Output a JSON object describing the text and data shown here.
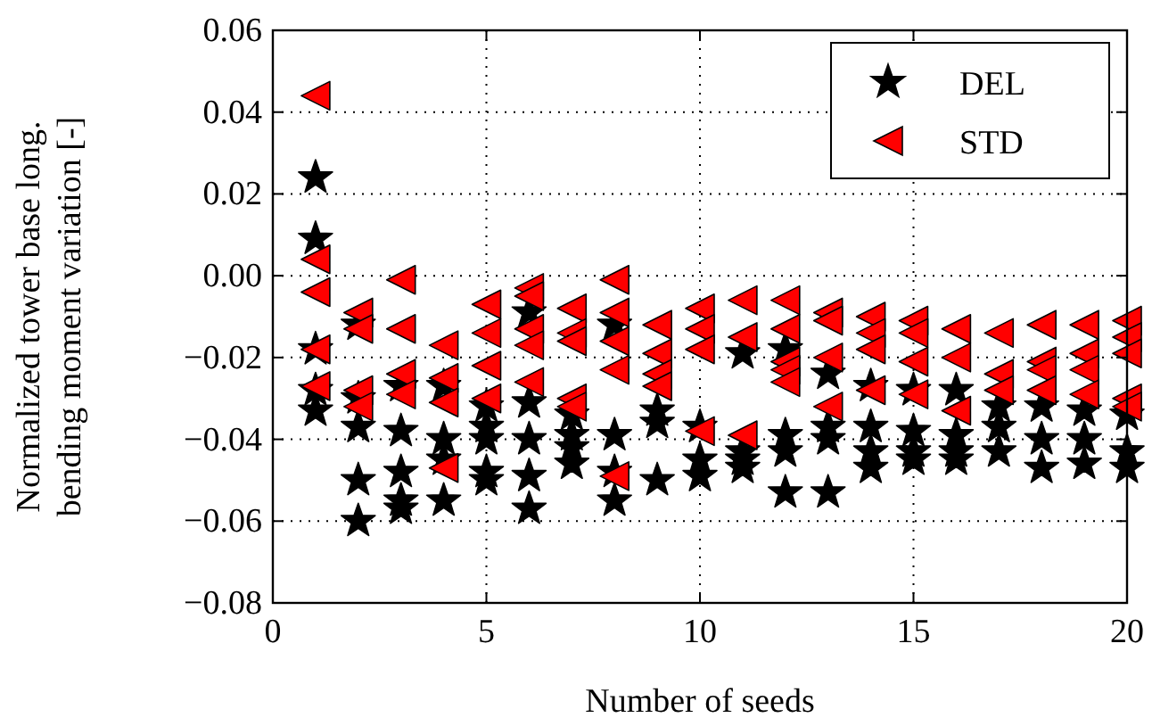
{
  "chart_data": {
    "type": "scatter",
    "xlabel": "Number of seeds",
    "ylabel": "Normalized tower base long.\nbending moment variation [-]",
    "xlim": [
      0,
      20
    ],
    "xticks": [
      0,
      5,
      10,
      15,
      20
    ],
    "ylim": [
      -0.08,
      0.06
    ],
    "yticks": [
      {
        "value": -0.08,
        "label": "−0.08"
      },
      {
        "value": -0.06,
        "label": "−0.06"
      },
      {
        "value": -0.04,
        "label": "−0.04"
      },
      {
        "value": -0.02,
        "label": "−0.02"
      },
      {
        "value": 0,
        "label": "0.00"
      },
      {
        "value": 0.02,
        "label": "0.02"
      },
      {
        "value": 0.04,
        "label": "0.04"
      },
      {
        "value": 0.06,
        "label": "0.06"
      }
    ],
    "grid": true,
    "legend": "top right",
    "series": [
      {
        "name": "DEL",
        "color": "#000000",
        "marker": "star",
        "x": [
          1,
          1,
          1,
          1,
          1,
          2,
          2,
          2,
          2,
          2,
          3,
          3,
          3,
          3,
          3,
          4,
          4,
          4,
          4,
          5,
          5,
          5,
          5,
          5,
          6,
          6,
          6,
          6,
          6,
          7,
          7,
          7,
          7,
          8,
          8,
          8,
          8,
          9,
          9,
          9,
          10,
          10,
          10,
          11,
          11,
          11,
          11,
          12,
          12,
          12,
          12,
          13,
          13,
          13,
          13,
          14,
          14,
          14,
          14,
          15,
          15,
          15,
          15,
          16,
          16,
          16,
          16,
          17,
          17,
          17,
          18,
          18,
          18,
          19,
          19,
          19,
          20,
          20,
          20
        ],
        "values": [
          0.024,
          0.009,
          -0.018,
          -0.028,
          -0.033,
          -0.012,
          -0.03,
          -0.037,
          -0.05,
          -0.06,
          -0.027,
          -0.038,
          -0.048,
          -0.055,
          -0.057,
          -0.027,
          -0.04,
          -0.045,
          -0.055,
          -0.032,
          -0.037,
          -0.04,
          -0.048,
          -0.05,
          -0.009,
          -0.031,
          -0.04,
          -0.049,
          -0.057,
          -0.034,
          -0.039,
          -0.042,
          -0.046,
          -0.012,
          -0.039,
          -0.048,
          -0.055,
          -0.033,
          -0.036,
          -0.05,
          -0.037,
          -0.045,
          -0.049,
          -0.019,
          -0.043,
          -0.045,
          -0.047,
          -0.018,
          -0.039,
          -0.043,
          -0.053,
          -0.024,
          -0.037,
          -0.04,
          -0.053,
          -0.027,
          -0.037,
          -0.043,
          -0.047,
          -0.028,
          -0.038,
          -0.043,
          -0.045,
          -0.028,
          -0.039,
          -0.043,
          -0.045,
          -0.032,
          -0.037,
          -0.043,
          -0.032,
          -0.04,
          -0.047,
          -0.033,
          -0.04,
          -0.046,
          -0.034,
          -0.043,
          -0.047
        ]
      },
      {
        "name": "STD",
        "color": "#ff0000",
        "marker": "triangle",
        "x": [
          1,
          1,
          1,
          1,
          1,
          2,
          2,
          2,
          2,
          3,
          3,
          3,
          3,
          4,
          4,
          4,
          4,
          5,
          5,
          5,
          5,
          6,
          6,
          6,
          6,
          6,
          7,
          7,
          7,
          7,
          7,
          8,
          8,
          8,
          8,
          8,
          9,
          9,
          9,
          9,
          10,
          10,
          10,
          10,
          11,
          11,
          11,
          12,
          12,
          12,
          12,
          12,
          13,
          13,
          13,
          13,
          14,
          14,
          14,
          14,
          15,
          15,
          15,
          15,
          16,
          16,
          16,
          17,
          17,
          17,
          18,
          18,
          18,
          18,
          19,
          19,
          19,
          19,
          20,
          20,
          20,
          20,
          20
        ],
        "values": [
          0.044,
          0.004,
          -0.004,
          -0.018,
          -0.027,
          -0.009,
          -0.013,
          -0.028,
          -0.032,
          -0.001,
          -0.013,
          -0.024,
          -0.029,
          -0.017,
          -0.025,
          -0.031,
          -0.047,
          -0.007,
          -0.014,
          -0.022,
          -0.03,
          -0.003,
          -0.005,
          -0.013,
          -0.017,
          -0.026,
          -0.008,
          -0.014,
          -0.016,
          -0.03,
          -0.032,
          -0.001,
          -0.009,
          -0.016,
          -0.023,
          -0.049,
          -0.012,
          -0.019,
          -0.024,
          -0.027,
          -0.008,
          -0.013,
          -0.018,
          -0.038,
          -0.006,
          -0.015,
          -0.039,
          -0.006,
          -0.013,
          -0.021,
          -0.023,
          -0.026,
          -0.009,
          -0.011,
          -0.02,
          -0.032,
          -0.01,
          -0.014,
          -0.018,
          -0.028,
          -0.011,
          -0.014,
          -0.021,
          -0.029,
          -0.013,
          -0.02,
          -0.033,
          -0.014,
          -0.024,
          -0.028,
          -0.012,
          -0.021,
          -0.023,
          -0.028,
          -0.012,
          -0.019,
          -0.023,
          -0.029,
          -0.011,
          -0.015,
          -0.019,
          -0.03,
          -0.032
        ]
      }
    ]
  }
}
